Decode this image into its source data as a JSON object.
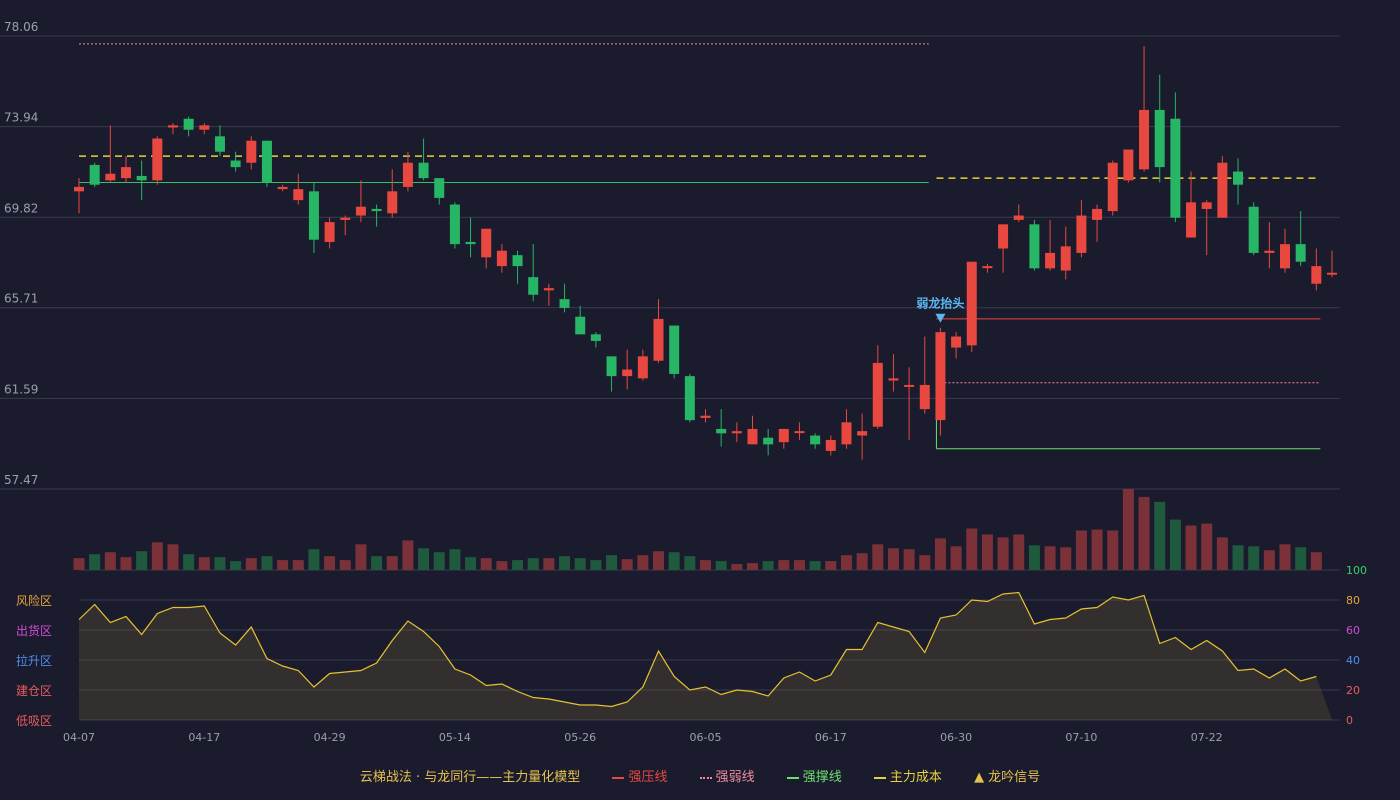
{
  "chart_data": {
    "type": "candlestick",
    "price_axis": {
      "ticks": [
        "78.06",
        "73.94",
        "69.82",
        "65.71",
        "61.59",
        "57.47"
      ],
      "min": 57.47,
      "max": 78.06
    },
    "indicator_axis": {
      "ticks": [
        "100",
        "80",
        "60",
        "40",
        "20",
        "0"
      ],
      "min": 0,
      "max": 100
    },
    "zones": [
      {
        "label": "风险区",
        "color": "#e6a23c"
      },
      {
        "label": "出货区",
        "color": "#d44bd4"
      },
      {
        "label": "拉升区",
        "color": "#4c8dea"
      },
      {
        "label": "建仓区",
        "color": "#e85c5c"
      },
      {
        "label": "低吸区",
        "color": "#e85c5c"
      }
    ],
    "x_labels": [
      {
        "i": 0,
        "label": "04-07"
      },
      {
        "i": 8,
        "label": "04-17"
      },
      {
        "i": 16,
        "label": "04-29"
      },
      {
        "i": 24,
        "label": "05-14"
      },
      {
        "i": 32,
        "label": "05-26"
      },
      {
        "i": 40,
        "label": "06-05"
      },
      {
        "i": 48,
        "label": "06-17"
      },
      {
        "i": 56,
        "label": "06-30"
      },
      {
        "i": 64,
        "label": "07-10"
      },
      {
        "i": 72,
        "label": "07-22"
      }
    ],
    "candles": [
      [
        71.0,
        71.2,
        70.0,
        71.6
      ],
      [
        72.2,
        71.3,
        71.2,
        72.3
      ],
      [
        71.5,
        71.8,
        71.4,
        74.0
      ],
      [
        71.6,
        72.1,
        71.4,
        72.6
      ],
      [
        71.7,
        71.5,
        70.6,
        72.4
      ],
      [
        71.5,
        73.4,
        71.3,
        73.5
      ],
      [
        73.9,
        74.0,
        73.6,
        74.1
      ],
      [
        74.3,
        73.8,
        73.5,
        74.4
      ],
      [
        73.8,
        74.0,
        73.6,
        74.1
      ],
      [
        73.5,
        72.8,
        72.6,
        74.0
      ],
      [
        72.4,
        72.1,
        71.9,
        72.8
      ],
      [
        72.3,
        73.3,
        72.0,
        73.5
      ],
      [
        73.3,
        71.4,
        71.2,
        73.3
      ],
      [
        71.1,
        71.2,
        71.0,
        71.3
      ],
      [
        70.6,
        71.1,
        70.4,
        71.8
      ],
      [
        71.0,
        68.8,
        68.2,
        71.4
      ],
      [
        68.7,
        69.6,
        68.4,
        69.8
      ],
      [
        69.7,
        69.8,
        69.0,
        69.9
      ],
      [
        69.9,
        70.3,
        69.6,
        71.5
      ],
      [
        70.2,
        70.1,
        69.4,
        70.4
      ],
      [
        70.0,
        71.0,
        69.8,
        72.0
      ],
      [
        71.2,
        72.3,
        71.0,
        72.8
      ],
      [
        72.3,
        71.6,
        71.5,
        73.4
      ],
      [
        71.6,
        70.7,
        70.4,
        71.6
      ],
      [
        70.4,
        68.6,
        68.4,
        70.5
      ],
      [
        68.7,
        68.6,
        68.0,
        69.8
      ],
      [
        68.0,
        69.3,
        67.5,
        69.3
      ],
      [
        67.6,
        68.3,
        67.3,
        68.6
      ],
      [
        68.1,
        67.6,
        66.8,
        68.3
      ],
      [
        67.1,
        66.3,
        66.0,
        68.6
      ],
      [
        66.5,
        66.6,
        65.8,
        66.8
      ],
      [
        66.1,
        65.7,
        65.5,
        66.8
      ],
      [
        65.3,
        64.5,
        64.5,
        65.8
      ],
      [
        64.5,
        64.2,
        63.9,
        64.6
      ],
      [
        63.5,
        62.6,
        61.9,
        63.5
      ],
      [
        62.6,
        62.9,
        62.0,
        63.8
      ],
      [
        62.5,
        63.5,
        62.4,
        63.8
      ],
      [
        63.3,
        65.2,
        63.2,
        66.1
      ],
      [
        64.9,
        62.7,
        62.5,
        64.9
      ],
      [
        62.6,
        60.6,
        60.5,
        62.7
      ],
      [
        60.7,
        60.8,
        60.5,
        61.1
      ],
      [
        60.2,
        60.0,
        59.4,
        61.1
      ],
      [
        60.0,
        60.1,
        59.6,
        60.5
      ],
      [
        59.5,
        60.2,
        59.5,
        60.8
      ],
      [
        59.8,
        59.5,
        59.0,
        60.2
      ],
      [
        59.6,
        60.2,
        59.3,
        60.2
      ],
      [
        60.1,
        60.1,
        59.7,
        60.5
      ],
      [
        59.9,
        59.5,
        59.3,
        60.0
      ],
      [
        59.2,
        59.7,
        59.0,
        59.9
      ],
      [
        59.5,
        60.5,
        59.3,
        61.1
      ],
      [
        59.9,
        60.1,
        58.8,
        60.9
      ],
      [
        60.3,
        63.2,
        60.2,
        64.0
      ],
      [
        62.4,
        62.5,
        61.9,
        63.6
      ],
      [
        62.2,
        62.2,
        59.7,
        63.0
      ],
      [
        61.1,
        62.2,
        60.9,
        64.4
      ],
      [
        60.6,
        64.6,
        59.9,
        64.8
      ],
      [
        63.9,
        64.4,
        63.4,
        64.6
      ],
      [
        64.0,
        67.8,
        63.7,
        67.8
      ],
      [
        67.6,
        67.6,
        67.3,
        67.7
      ],
      [
        68.4,
        69.5,
        67.3,
        69.5
      ],
      [
        69.7,
        69.9,
        69.6,
        70.4
      ],
      [
        69.5,
        67.5,
        67.4,
        69.7
      ],
      [
        67.5,
        68.2,
        67.4,
        69.7
      ],
      [
        67.4,
        68.5,
        67.0,
        69.4
      ],
      [
        68.2,
        69.9,
        68.0,
        70.6
      ],
      [
        69.7,
        70.2,
        68.7,
        70.4
      ],
      [
        70.1,
        72.3,
        69.9,
        72.4
      ],
      [
        71.5,
        72.9,
        71.4,
        72.9
      ],
      [
        72.0,
        74.7,
        71.9,
        77.6
      ],
      [
        74.7,
        72.1,
        71.4,
        76.3
      ],
      [
        74.3,
        69.8,
        69.6,
        75.5
      ],
      [
        68.9,
        70.5,
        68.9,
        71.9
      ],
      [
        70.2,
        70.5,
        68.1,
        70.6
      ],
      [
        69.8,
        72.3,
        69.8,
        72.6
      ],
      [
        71.9,
        71.3,
        70.4,
        72.5
      ],
      [
        70.3,
        68.2,
        68.1,
        70.5
      ],
      [
        68.2,
        68.3,
        67.5,
        69.6
      ],
      [
        67.5,
        68.6,
        67.3,
        69.3
      ],
      [
        68.6,
        67.8,
        67.6,
        70.1
      ],
      [
        66.8,
        67.6,
        66.5,
        68.4
      ],
      [
        67.3,
        67.3,
        67.1,
        68.3
      ]
    ],
    "volume": [
      12,
      16,
      18,
      13,
      19,
      28,
      26,
      16,
      13,
      13,
      9,
      12,
      14,
      10,
      10,
      21,
      14,
      10,
      26,
      14,
      14,
      30,
      22,
      18,
      21,
      13,
      12,
      9,
      10,
      12,
      12,
      14,
      12,
      10,
      15,
      11,
      15,
      19,
      18,
      14,
      10,
      9,
      6,
      7,
      9,
      10,
      10,
      9,
      9,
      15,
      17,
      26,
      22,
      21,
      15,
      32,
      24,
      42,
      36,
      33,
      36,
      25,
      24,
      23,
      40,
      41,
      40,
      82,
      74,
      69,
      51,
      45,
      47,
      33,
      25,
      24,
      20,
      26,
      23,
      18
    ],
    "volume_max": 82,
    "indicator": [
      67,
      77,
      65,
      69,
      57,
      71,
      75,
      75,
      76,
      58,
      50,
      62,
      41,
      36,
      33,
      22,
      31,
      32,
      33,
      38,
      53,
      66,
      59,
      49,
      34,
      30,
      23,
      24,
      19,
      15,
      14,
      12,
      10,
      10,
      9,
      12,
      22,
      46,
      29,
      20,
      22,
      17,
      20,
      19,
      16,
      28,
      32,
      26,
      30,
      47,
      47,
      65,
      62,
      59,
      45,
      68,
      70,
      80,
      79,
      84,
      85,
      64,
      67,
      68,
      74,
      75,
      82,
      80,
      83,
      51,
      55,
      47,
      53,
      46,
      33,
      34,
      28,
      34,
      26,
      29
    ],
    "markers": [
      {
        "i": 55,
        "label": "弱龙抬头",
        "color": "#5ab6ee"
      }
    ],
    "levels": [
      {
        "kind": "solid",
        "color": "#34c063",
        "value": 71.4,
        "from": 0,
        "to": 54
      },
      {
        "kind": "dashed",
        "color": "#e8d13c",
        "value": 72.6,
        "from": 0,
        "to": 54
      },
      {
        "kind": "dotted",
        "color": "#f08a9a",
        "value": 77.7,
        "from": 0,
        "to": 54
      },
      {
        "kind": "dashed",
        "color": "#e8d13c",
        "value": 71.6,
        "from": 55,
        "to": 79
      },
      {
        "kind": "solid",
        "color": "#e8483f",
        "value": 65.2,
        "from": 55,
        "to": 79
      },
      {
        "kind": "dotted",
        "color": "#f08a9a",
        "value": 62.3,
        "from": 55,
        "to": 79
      },
      {
        "kind": "solid",
        "color": "#6ce06c",
        "value": 59.3,
        "from": 55,
        "to": 79
      }
    ],
    "up_color": "#e8483f",
    "down_color": "#27b566",
    "grid": true,
    "legend_position": "bottom"
  },
  "legend": {
    "title": "云梯战法 · 与龙同行——主力量化模型",
    "items": [
      {
        "label": "强压线",
        "color": "#e8483f",
        "style": "solid"
      },
      {
        "label": "强弱线",
        "color": "#f08a9a",
        "style": "dotted"
      },
      {
        "label": "强撑线",
        "color": "#6ce06c",
        "style": "solid"
      },
      {
        "label": "主力成本",
        "color": "#e8d13c",
        "style": "dashed"
      },
      {
        "label": "龙吟信号",
        "color": "#e6c14d",
        "style": "triangle"
      }
    ]
  }
}
